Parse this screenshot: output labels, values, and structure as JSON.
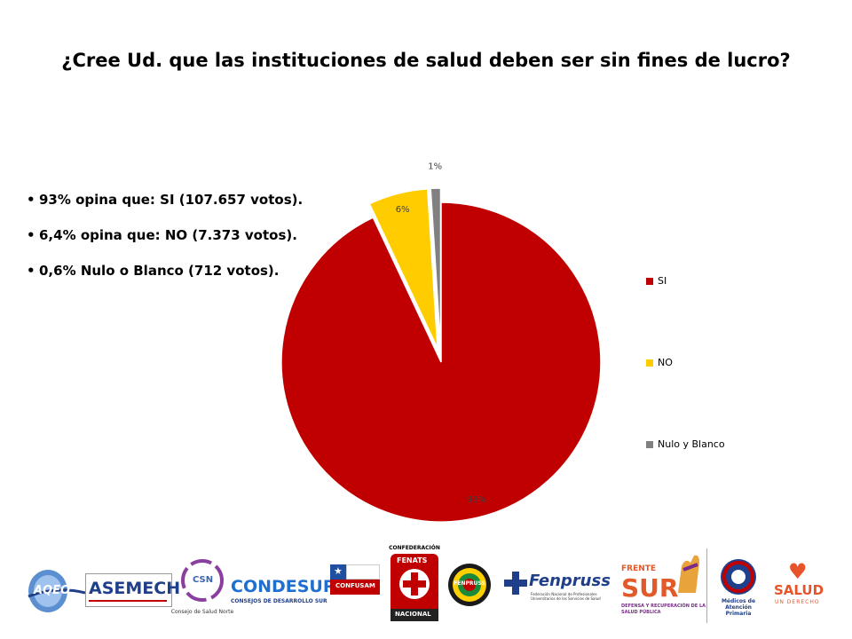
{
  "title": "¿Cree Ud. que las instituciones de salud deben ser sin fines de lucro?",
  "bullets": [
    "93% opina que: SI (107.657  votos).",
    "6,4% opina que: NO (7.373 votos).",
    "0,6% Nulo o Blanco (712 votos)."
  ],
  "chart_data": {
    "type": "pie",
    "categories": [
      "SI",
      "NO",
      "Nulo y Blanco"
    ],
    "values": [
      93,
      6,
      1
    ],
    "data_labels": [
      "93%",
      "6%",
      "1%"
    ],
    "colors": [
      "#c00000",
      "#ffcc00",
      "#808080"
    ],
    "legend_position": "right",
    "exploded": true
  },
  "logos": {
    "aqeo": "AQEO",
    "asemech": "ASEMECH",
    "csn": "CSN",
    "csn_sub": "Consejo de Salud Norte",
    "condesur": "CONDESUR",
    "condesur_sub": "CONSEJOS DE DESARROLLO SUR",
    "confusam": "CONFUSAM",
    "fenats_top": "CONFEDERACIÓN",
    "fenats": "FENATS",
    "fenats_bottom": "NACIONAL",
    "fenpruss_badge": "FENPRUSS",
    "fenpruss": "Fenpruss",
    "fenpruss_sub": "Federación Nacional de Profesionales Universitarios de los Servicios de Salud",
    "frente": "FRENTE",
    "sur": "SUR",
    "frente_sub": "DEFENSA Y RECUPERACIÓN DE LA SALUD PÚBLICA",
    "medicos": "Médicos de Atención Primaria",
    "salud": "SALUD",
    "salud_sub": "UN DERECHO"
  }
}
